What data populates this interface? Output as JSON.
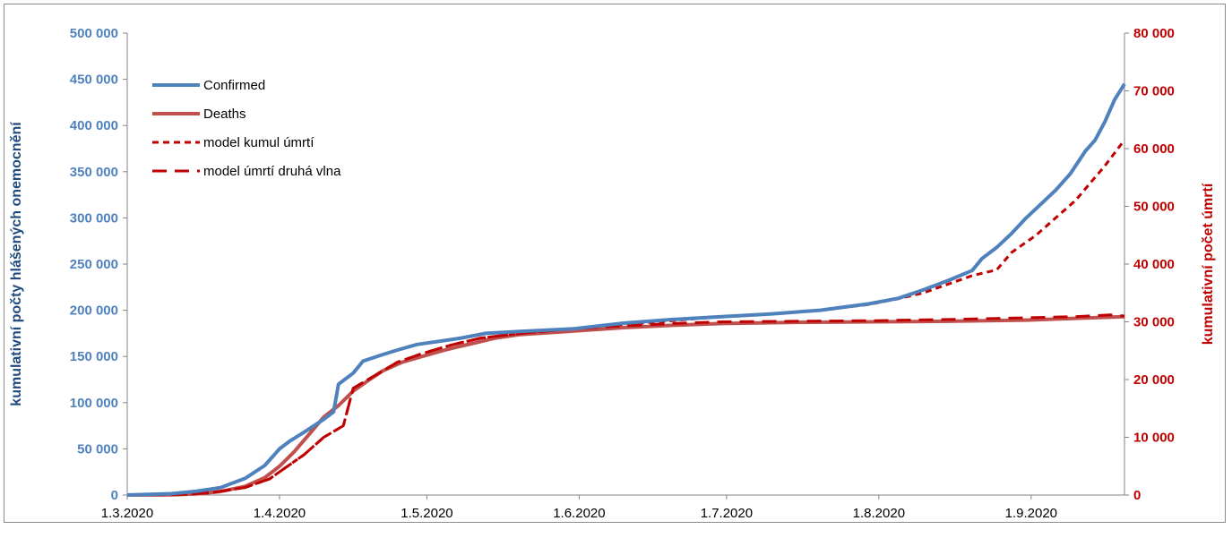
{
  "chart_data": {
    "type": "line",
    "ylabel": "kumulativní počty hlášených onemocnění",
    "ylabel_right": "kumulativní počet úmrtí",
    "x_ticks": [
      "1.3.2020",
      "1.4.2020",
      "1.5.2020",
      "1.6.2020",
      "1.7.2020",
      "1.8.2020",
      "1.9.2020"
    ],
    "x_range": [
      "2020-03-01",
      "2020-09-20"
    ],
    "ylim": [
      0,
      500000
    ],
    "ylim_right": [
      0,
      80000
    ],
    "y_ticks_left": [
      "0",
      "50 000",
      "100 000",
      "150 000",
      "200 000",
      "250 000",
      "300 000",
      "350 000",
      "400 000",
      "450 000",
      "500 000"
    ],
    "y_ticks_right": [
      "0",
      "10 000",
      "20 000",
      "30 000",
      "40 000",
      "50 000",
      "60 000",
      "70 000",
      "80 000"
    ],
    "legend_position": "top-left",
    "grid": false,
    "series": [
      {
        "name": "Confirmed",
        "axis": "left",
        "color": "#4f81bd",
        "style": "solid",
        "points": [
          [
            "2020-03-01",
            0
          ],
          [
            "2020-03-10",
            1500
          ],
          [
            "2020-03-15",
            4000
          ],
          [
            "2020-03-20",
            8000
          ],
          [
            "2020-03-25",
            18000
          ],
          [
            "2020-03-29",
            32000
          ],
          [
            "2020-04-01",
            50000
          ],
          [
            "2020-04-03",
            58000
          ],
          [
            "2020-04-06",
            68000
          ],
          [
            "2020-04-10",
            82000
          ],
          [
            "2020-04-12",
            90000
          ],
          [
            "2020-04-13",
            120000
          ],
          [
            "2020-04-16",
            132000
          ],
          [
            "2020-04-18",
            145000
          ],
          [
            "2020-04-22",
            152000
          ],
          [
            "2020-04-25",
            157000
          ],
          [
            "2020-04-29",
            163000
          ],
          [
            "2020-05-03",
            166000
          ],
          [
            "2020-05-08",
            170000
          ],
          [
            "2020-05-13",
            175000
          ],
          [
            "2020-05-20",
            177000
          ],
          [
            "2020-05-31",
            180000
          ],
          [
            "2020-06-10",
            186000
          ],
          [
            "2020-06-20",
            190000
          ],
          [
            "2020-06-30",
            193000
          ],
          [
            "2020-07-10",
            196000
          ],
          [
            "2020-07-20",
            200000
          ],
          [
            "2020-07-30",
            207000
          ],
          [
            "2020-08-05",
            213000
          ],
          [
            "2020-08-10",
            222000
          ],
          [
            "2020-08-15",
            232000
          ],
          [
            "2020-08-20",
            243000
          ],
          [
            "2020-08-22",
            256000
          ],
          [
            "2020-08-25",
            268000
          ],
          [
            "2020-08-28",
            283000
          ],
          [
            "2020-08-31",
            300000
          ],
          [
            "2020-09-03",
            315000
          ],
          [
            "2020-09-06",
            330000
          ],
          [
            "2020-09-09",
            348000
          ],
          [
            "2020-09-12",
            372000
          ],
          [
            "2020-09-14",
            384000
          ],
          [
            "2020-09-16",
            404000
          ],
          [
            "2020-09-18",
            428000
          ],
          [
            "2020-09-20",
            445000
          ]
        ]
      },
      {
        "name": "Deaths",
        "axis": "right",
        "color": "#c0504d",
        "style": "solid",
        "points": [
          [
            "2020-03-01",
            0
          ],
          [
            "2020-03-10",
            50
          ],
          [
            "2020-03-15",
            200
          ],
          [
            "2020-03-20",
            600
          ],
          [
            "2020-03-25",
            1500
          ],
          [
            "2020-03-29",
            3000
          ],
          [
            "2020-04-01",
            5000
          ],
          [
            "2020-04-04",
            7500
          ],
          [
            "2020-04-07",
            10500
          ],
          [
            "2020-04-10",
            13500
          ],
          [
            "2020-04-13",
            15500
          ],
          [
            "2020-04-16",
            18000
          ],
          [
            "2020-04-19",
            19800
          ],
          [
            "2020-04-22",
            21500
          ],
          [
            "2020-04-26",
            23000
          ],
          [
            "2020-04-30",
            24000
          ],
          [
            "2020-05-05",
            25200
          ],
          [
            "2020-05-10",
            26200
          ],
          [
            "2020-05-15",
            27200
          ],
          [
            "2020-05-20",
            27800
          ],
          [
            "2020-05-31",
            28400
          ],
          [
            "2020-06-10",
            29000
          ],
          [
            "2020-06-20",
            29400
          ],
          [
            "2020-06-30",
            29700
          ],
          [
            "2020-07-15",
            29900
          ],
          [
            "2020-07-31",
            30000
          ],
          [
            "2020-08-15",
            30100
          ],
          [
            "2020-08-31",
            30300
          ],
          [
            "2020-09-10",
            30600
          ],
          [
            "2020-09-20",
            30900
          ]
        ]
      },
      {
        "name": "model kumul úmrtí",
        "axis": "right",
        "color": "#c00000",
        "style": "dotted",
        "points": [
          [
            "2020-03-01",
            0
          ],
          [
            "2020-03-12",
            100
          ],
          [
            "2020-03-18",
            400
          ],
          [
            "2020-03-25",
            1300
          ],
          [
            "2020-03-30",
            2800
          ],
          [
            "2020-04-02",
            4600
          ],
          [
            "2020-04-06",
            7000
          ],
          [
            "2020-04-10",
            10000
          ],
          [
            "2020-04-14",
            12000
          ],
          [
            "2020-04-16",
            18500
          ],
          [
            "2020-04-20",
            20500
          ],
          [
            "2020-04-25",
            23000
          ],
          [
            "2020-04-30",
            24500
          ],
          [
            "2020-05-06",
            26000
          ],
          [
            "2020-05-12",
            27200
          ],
          [
            "2020-05-20",
            28000
          ],
          [
            "2020-05-31",
            28800
          ],
          [
            "2020-06-10",
            29500
          ],
          [
            "2020-06-20",
            30200
          ],
          [
            "2020-06-30",
            30900
          ],
          [
            "2020-07-10",
            31400
          ],
          [
            "2020-07-20",
            32000
          ],
          [
            "2020-07-30",
            33000
          ],
          [
            "2020-08-05",
            34000
          ],
          [
            "2020-08-10",
            35000
          ],
          [
            "2020-08-15",
            36500
          ],
          [
            "2020-08-20",
            38000
          ],
          [
            "2020-08-25",
            39000
          ],
          [
            "2020-08-28",
            42000
          ],
          [
            "2020-09-02",
            45000
          ],
          [
            "2020-09-06",
            48000
          ],
          [
            "2020-09-10",
            51000
          ],
          [
            "2020-09-13",
            54000
          ],
          [
            "2020-09-16",
            57000
          ],
          [
            "2020-09-20",
            61500
          ]
        ]
      },
      {
        "name": "model úmrtí druhá vlna",
        "axis": "right",
        "color": "#c00000",
        "style": "dashed",
        "points": [
          [
            "2020-03-01",
            0
          ],
          [
            "2020-03-12",
            100
          ],
          [
            "2020-03-18",
            400
          ],
          [
            "2020-03-25",
            1300
          ],
          [
            "2020-03-30",
            2800
          ],
          [
            "2020-04-02",
            4600
          ],
          [
            "2020-04-06",
            7000
          ],
          [
            "2020-04-10",
            10000
          ],
          [
            "2020-04-14",
            12000
          ],
          [
            "2020-04-16",
            18500
          ],
          [
            "2020-04-20",
            20500
          ],
          [
            "2020-04-25",
            23000
          ],
          [
            "2020-04-30",
            24500
          ],
          [
            "2020-05-06",
            26000
          ],
          [
            "2020-05-12",
            27200
          ],
          [
            "2020-05-20",
            28000
          ],
          [
            "2020-05-31",
            28800
          ],
          [
            "2020-06-10",
            29300
          ],
          [
            "2020-06-20",
            29700
          ],
          [
            "2020-06-30",
            30000
          ],
          [
            "2020-07-15",
            30100
          ],
          [
            "2020-07-31",
            30200
          ],
          [
            "2020-08-15",
            30400
          ],
          [
            "2020-08-31",
            30700
          ],
          [
            "2020-09-10",
            30900
          ],
          [
            "2020-09-17",
            31200
          ],
          [
            "2020-09-20",
            31000
          ]
        ]
      }
    ]
  }
}
